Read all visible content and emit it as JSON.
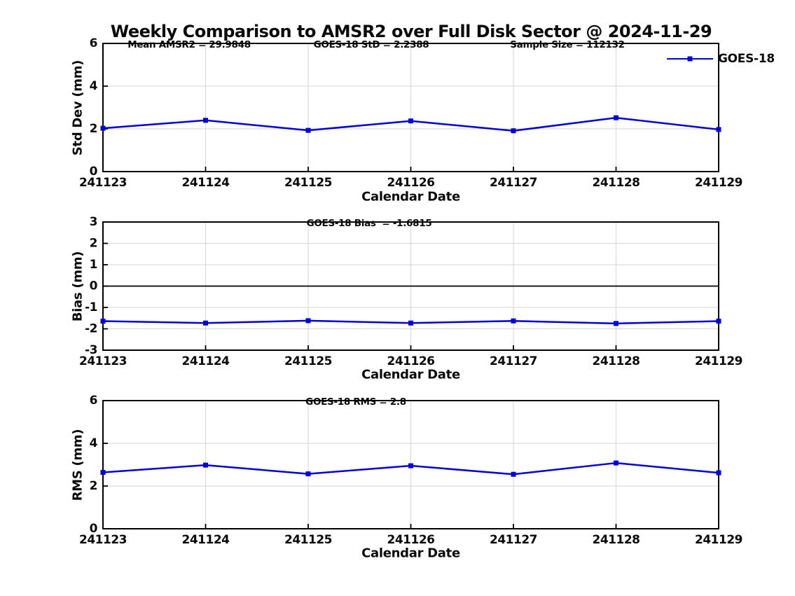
{
  "title": "Weekly Comparison to AMSR2 over Full Disk Sector @ 2024-11-29",
  "legend": {
    "label": "GOES-18",
    "position": "top-right"
  },
  "colors": {
    "line": "#0000d9",
    "marker": "#0000d9",
    "grid": "#d6d6d6",
    "axis": "#000000",
    "zero_line": "#000000",
    "background": "#ffffff",
    "text": "#0a0a0a"
  },
  "chart_data": [
    {
      "type": "line",
      "title": "",
      "categories": [
        "241123",
        "241124",
        "241125",
        "241126",
        "241127",
        "241128",
        "241129"
      ],
      "series": [
        {
          "name": "GOES-18",
          "values": [
            2.03,
            2.4,
            1.93,
            2.37,
            1.91,
            2.52,
            1.97
          ]
        }
      ],
      "xlabel": "Calendar Date",
      "ylabel": "Std Dev (mm)",
      "ylim": [
        0,
        6
      ],
      "yticks": [
        0,
        2,
        4,
        6
      ],
      "grid": true,
      "zero_line": false,
      "marker": "square",
      "annotations": [
        {
          "text": "Mean AMSR2 = 29.9848"
        },
        {
          "text": "GOES-18 StD = 2.2388"
        },
        {
          "text": "Sample Size = 112132"
        }
      ]
    },
    {
      "type": "line",
      "title": "",
      "categories": [
        "241123",
        "241124",
        "241125",
        "241126",
        "241127",
        "241128",
        "241129"
      ],
      "series": [
        {
          "name": "GOES-18",
          "values": [
            -1.64,
            -1.73,
            -1.62,
            -1.73,
            -1.63,
            -1.75,
            -1.64
          ]
        }
      ],
      "xlabel": "Calendar Date",
      "ylabel": "Bias (mm)",
      "ylim": [
        -3,
        3
      ],
      "yticks": [
        -3,
        -2,
        -1,
        0,
        1,
        2,
        3
      ],
      "grid": true,
      "zero_line": true,
      "marker": "square",
      "annotations": [
        {
          "text": "GOES-18 Bias  = -1.6815"
        }
      ]
    },
    {
      "type": "line",
      "title": "",
      "categories": [
        "241123",
        "241124",
        "241125",
        "241126",
        "241127",
        "241128",
        "241129"
      ],
      "series": [
        {
          "name": "GOES-18",
          "values": [
            2.64,
            2.98,
            2.57,
            2.95,
            2.55,
            3.08,
            2.62
          ]
        }
      ],
      "xlabel": "Calendar Date",
      "ylabel": "RMS (mm)",
      "ylim": [
        0,
        6
      ],
      "yticks": [
        0,
        2,
        4,
        6
      ],
      "grid": true,
      "zero_line": false,
      "marker": "square",
      "annotations": [
        {
          "text": "GOES-18 RMS = 2.8"
        }
      ]
    }
  ]
}
